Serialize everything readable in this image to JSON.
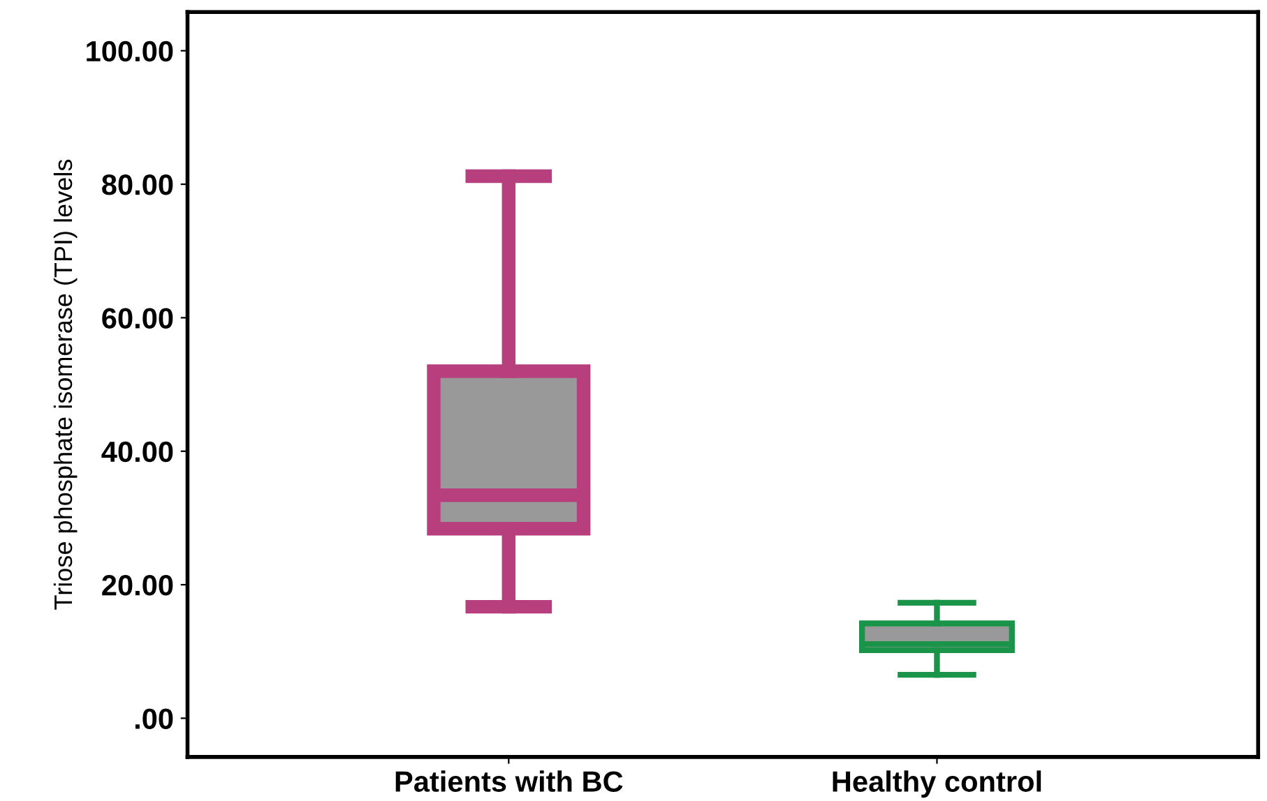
{
  "chart_data": {
    "type": "box",
    "ylabel": "Triose phosphate isomerase (TPI) levels",
    "categories": [
      "Patients with BC",
      "Healthy control"
    ],
    "boxes": [
      {
        "low": 16.7,
        "q1": 28.4,
        "median": 33.4,
        "q3": 52,
        "high": 81.2
      },
      {
        "low": 6.5,
        "q1": 10.2,
        "median": 11.1,
        "q3": 14.2,
        "high": 17.3
      }
    ],
    "colors": [
      "#b83f7e",
      "#1a9448"
    ],
    "ylim": [
      -5.8,
      105.8
    ],
    "yticks": [
      {
        "value": 0,
        "label": ".00"
      },
      {
        "value": 20,
        "label": "20.00"
      },
      {
        "value": 40,
        "label": "40.00"
      },
      {
        "value": 60,
        "label": "60.00"
      },
      {
        "value": 80,
        "label": "80.00"
      },
      {
        "value": 100,
        "label": "100.00"
      }
    ],
    "grid": false
  }
}
